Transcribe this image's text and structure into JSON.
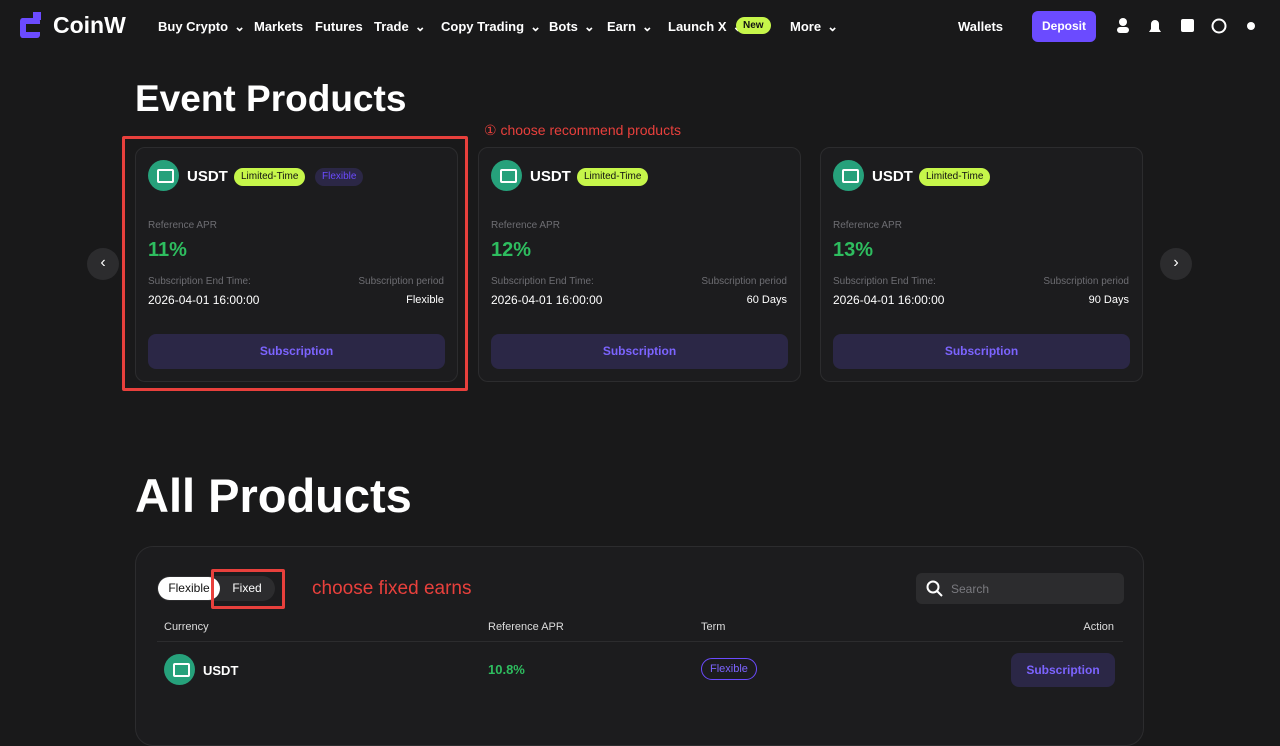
{
  "nav": {
    "logo": "CoinW",
    "items": [
      "Buy Crypto",
      "Markets",
      "Futures",
      "Trade",
      "Copy Trading",
      "Bots",
      "Earn",
      "Launch X",
      "More"
    ],
    "badge": "New",
    "wallets": "Wallets",
    "deposit": "Deposit"
  },
  "event": {
    "title": "Event Products",
    "annotation": "① choose recommend products",
    "cards": [
      {
        "currency": "USDT",
        "tags": [
          "Limited-Time",
          "Flexible"
        ],
        "apr_label": "Reference APR",
        "apr": "11%",
        "end_label": "Subscription End Time:",
        "end": "2026-04-01 16:00:00",
        "period_label": "Subscription period",
        "period": "Flexible",
        "button": "Subscription"
      },
      {
        "currency": "USDT",
        "tags": [
          "Limited-Time"
        ],
        "apr_label": "Reference APR",
        "apr": "12%",
        "end_label": "Subscription End Time:",
        "end": "2026-04-01 16:00:00",
        "period_label": "Subscription period",
        "period": "60 Days",
        "button": "Subscription"
      },
      {
        "currency": "USDT",
        "tags": [
          "Limited-Time"
        ],
        "apr_label": "Reference APR",
        "apr": "13%",
        "end_label": "Subscription End Time:",
        "end": "2026-04-01 16:00:00",
        "period_label": "Subscription period",
        "period": "90 Days",
        "button": "Subscription"
      }
    ]
  },
  "all": {
    "title": "All Products",
    "tabs": [
      "Flexible",
      "Fixed"
    ],
    "annotation": "choose fixed earns",
    "search": "Search",
    "columns": [
      "Currency",
      "Reference APR",
      "Term",
      "Action"
    ],
    "rows": [
      {
        "currency": "USDT",
        "apr": "10.8%",
        "term": "Flexible",
        "action": "Subscription"
      }
    ]
  }
}
